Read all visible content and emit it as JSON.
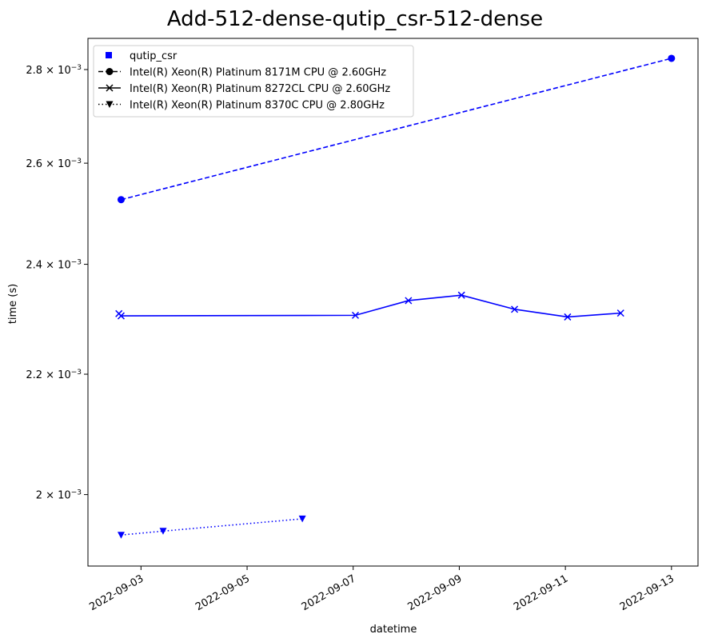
{
  "chart_data": {
    "type": "line",
    "title": "Add-512-dense-qutip_csr-512-dense",
    "xlabel": "datetime",
    "ylabel": "time (s)",
    "yscale": "log",
    "ylim": [
      0.00189,
      0.00287
    ],
    "xlim": [
      "2022-09-02T00:00",
      "2022-09-13T12:00"
    ],
    "x_ticks": [
      "2022-09-03",
      "2022-09-05",
      "2022-09-07",
      "2022-09-09",
      "2022-09-11",
      "2022-09-13"
    ],
    "y_ticks": [
      {
        "value": 0.002,
        "mantissa": "2",
        "exponent": "−3"
      },
      {
        "value": 0.0022,
        "mantissa": "2.2",
        "exponent": "−3"
      },
      {
        "value": 0.0024,
        "mantissa": "2.4",
        "exponent": "−3"
      },
      {
        "value": 0.0026,
        "mantissa": "2.6",
        "exponent": "−3"
      },
      {
        "value": 0.0028,
        "mantissa": "2.8",
        "exponent": "−3"
      }
    ],
    "times_sign": "×",
    "tick_base": "10",
    "legend": {
      "placement": "top-left",
      "title_entry": "qutip_csr",
      "entries": [
        "Intel(R) Xeon(R) Platinum 8171M CPU @ 2.60GHz",
        "Intel(R) Xeon(R) Platinum 8272CL CPU @ 2.60GHz",
        "Intel(R) Xeon(R) Platinum 8370C CPU @ 2.80GHz"
      ]
    },
    "grid": false,
    "series": [
      {
        "name": "Intel(R) Xeon(R) Platinum 8171M CPU @ 2.60GHz",
        "marker": "circle",
        "linestyle": "dashed",
        "color": "#0000ff",
        "points": [
          {
            "x": "2022-09-02T15:00",
            "y": 0.002526
          },
          {
            "x": "2022-09-13T00:00",
            "y": 0.002825
          }
        ]
      },
      {
        "name": "Intel(R) Xeon(R) Platinum 8272CL CPU @ 2.60GHz",
        "marker": "x",
        "linestyle": "solid",
        "color": "#0000ff",
        "points": [
          {
            "x": "2022-09-02T14:00",
            "y": 0.002308
          },
          {
            "x": "2022-09-02T15:00",
            "y": 0.002304
          },
          {
            "x": "2022-09-07T01:00",
            "y": 0.002305
          },
          {
            "x": "2022-09-08T01:00",
            "y": 0.002332
          },
          {
            "x": "2022-09-09T01:00",
            "y": 0.002342
          },
          {
            "x": "2022-09-10T01:00",
            "y": 0.002316
          },
          {
            "x": "2022-09-11T01:00",
            "y": 0.002302
          },
          {
            "x": "2022-09-12T01:00",
            "y": 0.002309
          }
        ]
      },
      {
        "name": "Intel(R) Xeon(R) Platinum 8370C CPU @ 2.80GHz",
        "marker": "triangle_down",
        "linestyle": "dotted",
        "color": "#0000ff",
        "points": [
          {
            "x": "2022-09-02T15:00",
            "y": 0.001937
          },
          {
            "x": "2022-09-03T10:00",
            "y": 0.001943
          },
          {
            "x": "2022-09-06T01:00",
            "y": 0.001962
          }
        ]
      }
    ]
  }
}
